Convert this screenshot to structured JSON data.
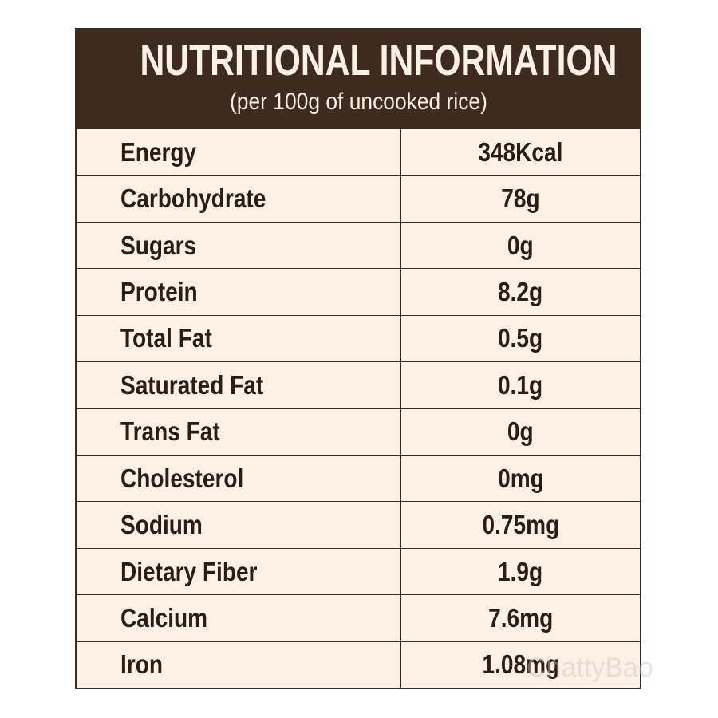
{
  "header": {
    "title": "NUTRITIONAL INFORMATION",
    "subtitle": "(per 100g of uncooked rice)"
  },
  "table": {
    "rows": [
      [
        "Energy",
        "348Kcal"
      ],
      [
        "Carbohydrate",
        "78g"
      ],
      [
        "Sugars",
        "0g"
      ],
      [
        "Protein",
        "8.2g"
      ],
      [
        "Total Fat",
        "0.5g"
      ],
      [
        "Saturated Fat",
        "0.1g"
      ],
      [
        "Trans Fat",
        "0g"
      ],
      [
        "Cholesterol",
        "0mg"
      ],
      [
        "Sodium",
        "0.75mg"
      ],
      [
        "Dietary Fiber",
        "1.9g"
      ],
      [
        "Calcium",
        "7.6mg"
      ],
      [
        "Iron",
        "1.08mg"
      ]
    ]
  },
  "watermark": "ChattyBao"
}
